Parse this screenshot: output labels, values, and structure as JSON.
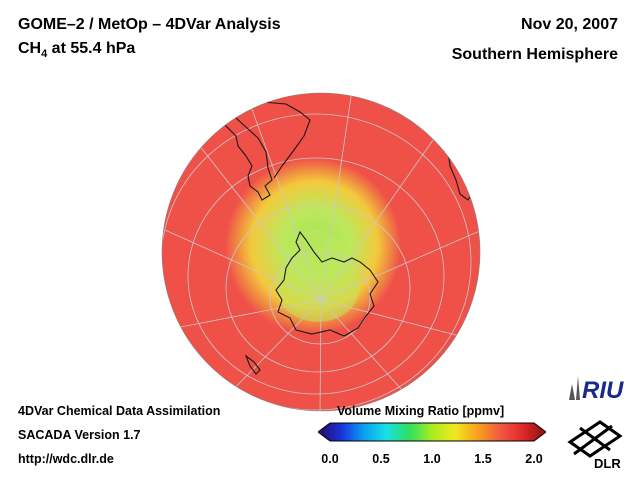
{
  "header": {
    "title_prefix": "GOME–2 / MetOp – 4DVar Analysis",
    "species": "CH",
    "species_subscript": "4",
    "level": " at 55.4 hPa",
    "date": "Nov 20, 2007",
    "region": "Southern Hemisphere"
  },
  "footer": {
    "line1": "4DVar Chemical Data Assimilation",
    "line2": "SACADA Version 1.7",
    "line3": "http://wdc.dlr.de"
  },
  "colorbar": {
    "title": "Volume Mixing Ratio [ppmv]",
    "ticks": [
      "0.0",
      "0.5",
      "1.0",
      "1.5",
      "2.0"
    ],
    "min": 0.0,
    "max": 2.0,
    "colors": [
      "#2a0a5e",
      "#1a2fd8",
      "#0aa0f0",
      "#18e0e8",
      "#30e060",
      "#a8ec20",
      "#f0e820",
      "#f8a020",
      "#f05a40",
      "#e02828",
      "#8a1010"
    ]
  },
  "map": {
    "projection": "Orthographic, south polar view",
    "background_value_ppmv": 1.65,
    "core_value_ppmv": 0.95,
    "ring_value_ppmv": 1.25,
    "colors": {
      "background": "#ef5048",
      "ring": "#f3c83c",
      "core": "#bde85c",
      "center": "#a8e458",
      "grid": "#c9c9c9",
      "coast": "#1a1a1a"
    }
  },
  "logos": {
    "riu": "RIU",
    "dlr": "DLR"
  }
}
